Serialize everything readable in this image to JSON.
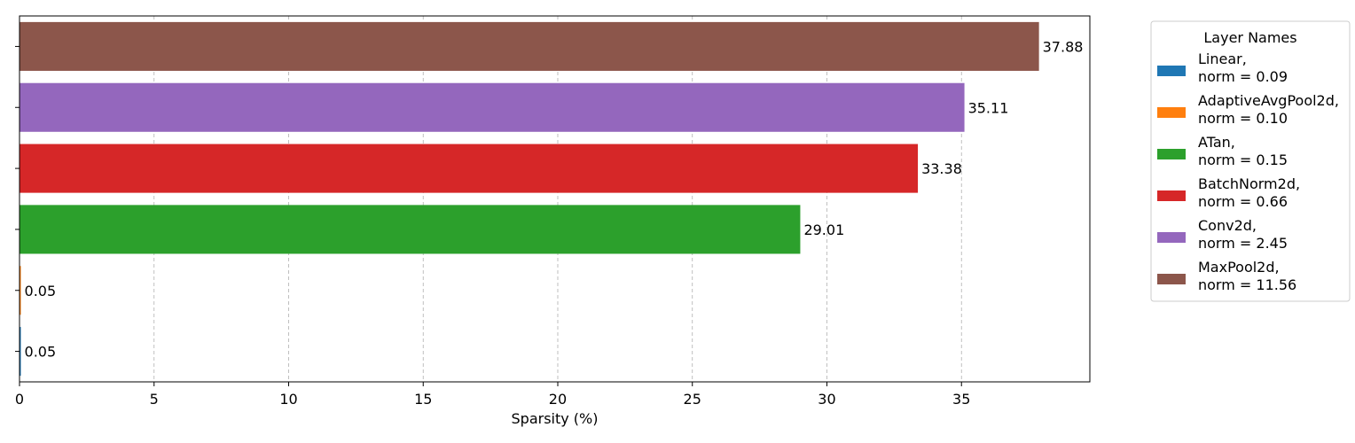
{
  "chart_data": {
    "type": "bar",
    "orientation": "horizontal",
    "xlabel": "Sparsity (%)",
    "ylabel": "",
    "xlim": [
      0,
      39.77
    ],
    "xticks": [
      0,
      5,
      10,
      15,
      20,
      25,
      30,
      35
    ],
    "grid": "x-dashed",
    "legend": {
      "title": "Layer Names",
      "placement": "outside-right-top",
      "entries": [
        {
          "line1": "Linear,",
          "line2": "norm = 0.09",
          "color": "#1f77b4"
        },
        {
          "line1": "AdaptiveAvgPool2d,",
          "line2": "norm = 0.10",
          "color": "#ff7f0e"
        },
        {
          "line1": "ATan,",
          "line2": "norm = 0.15",
          "color": "#2ca02c"
        },
        {
          "line1": "BatchNorm2d,",
          "line2": "norm = 0.66",
          "color": "#d62728"
        },
        {
          "line1": "Conv2d,",
          "line2": "norm = 2.45",
          "color": "#9467bd"
        },
        {
          "line1": "MaxPool2d,",
          "line2": "norm = 11.56",
          "color": "#8c564b"
        }
      ]
    },
    "series": [
      {
        "value": 0.05,
        "label": "0.05",
        "color": "#1f77b4"
      },
      {
        "value": 0.05,
        "label": "0.05",
        "color": "#ff7f0e"
      },
      {
        "value": 29.01,
        "label": "29.01",
        "color": "#2ca02c"
      },
      {
        "value": 33.38,
        "label": "33.38",
        "color": "#d62728"
      },
      {
        "value": 35.11,
        "label": "35.11",
        "color": "#9467bd"
      },
      {
        "value": 37.88,
        "label": "37.88",
        "color": "#8c564b"
      }
    ]
  }
}
